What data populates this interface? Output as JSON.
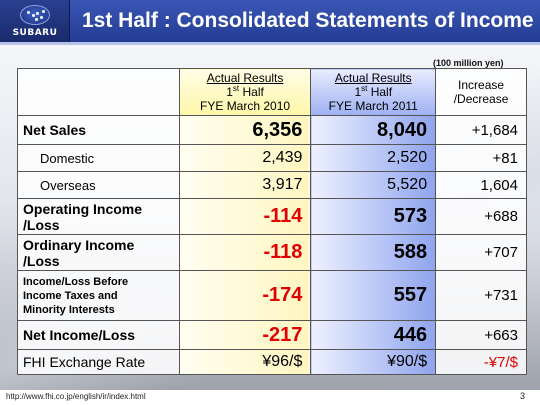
{
  "header": {
    "logo_text": "SUBARU",
    "title": "1st Half : Consolidated Statements of Income"
  },
  "unit_note": "(100 million yen)",
  "table": {
    "columns": [
      {
        "line1": "Actual Results",
        "line2_num": "1",
        "line2_sup": "st",
        "line2_rest": " Half",
        "line3": "FYE March 2010"
      },
      {
        "line1": "Actual Results",
        "line2_num": "1",
        "line2_sup": "st",
        "line2_rest": " Half",
        "line3": "FYE March 2011"
      },
      {
        "line1": "Increase",
        "line2": "/Decrease"
      }
    ],
    "rows": [
      {
        "label": "Net Sales",
        "v2010": "6,356",
        "v2011": "8,040",
        "delta": "+1,684"
      },
      {
        "label": "Domestic",
        "v2010": "2,439",
        "v2011": "2,520",
        "delta": "+81"
      },
      {
        "label": "Overseas",
        "v2010": "3,917",
        "v2011": "5,520",
        "delta": "1,604"
      },
      {
        "label_l1": "Operating Income",
        "label_l2": "/Loss",
        "v2010": "-114",
        "v2011": "573",
        "delta": "+688"
      },
      {
        "label_l1": "Ordinary Income",
        "label_l2": "/Loss",
        "v2010": "-118",
        "v2011": "588",
        "delta": "+707"
      },
      {
        "label_l1": "Income/Loss Before",
        "label_l2": "Income Taxes and",
        "label_l3": "Minority Interests",
        "v2010": "-174",
        "v2011": "557",
        "delta": "+731"
      },
      {
        "label": "Net Income/Loss",
        "v2010": "-217",
        "v2011": "446",
        "delta": "+663"
      },
      {
        "label": "FHI Exchange Rate",
        "v2010": "¥96/$",
        "v2011": "¥90/$",
        "delta": "-¥7/$"
      }
    ]
  },
  "footer": {
    "url": "http://www.fhi.co.jp/english/ir/index.html",
    "page": "3"
  },
  "colors": {
    "header_blue": "#2c47a6",
    "negative_red": "#e00000"
  }
}
